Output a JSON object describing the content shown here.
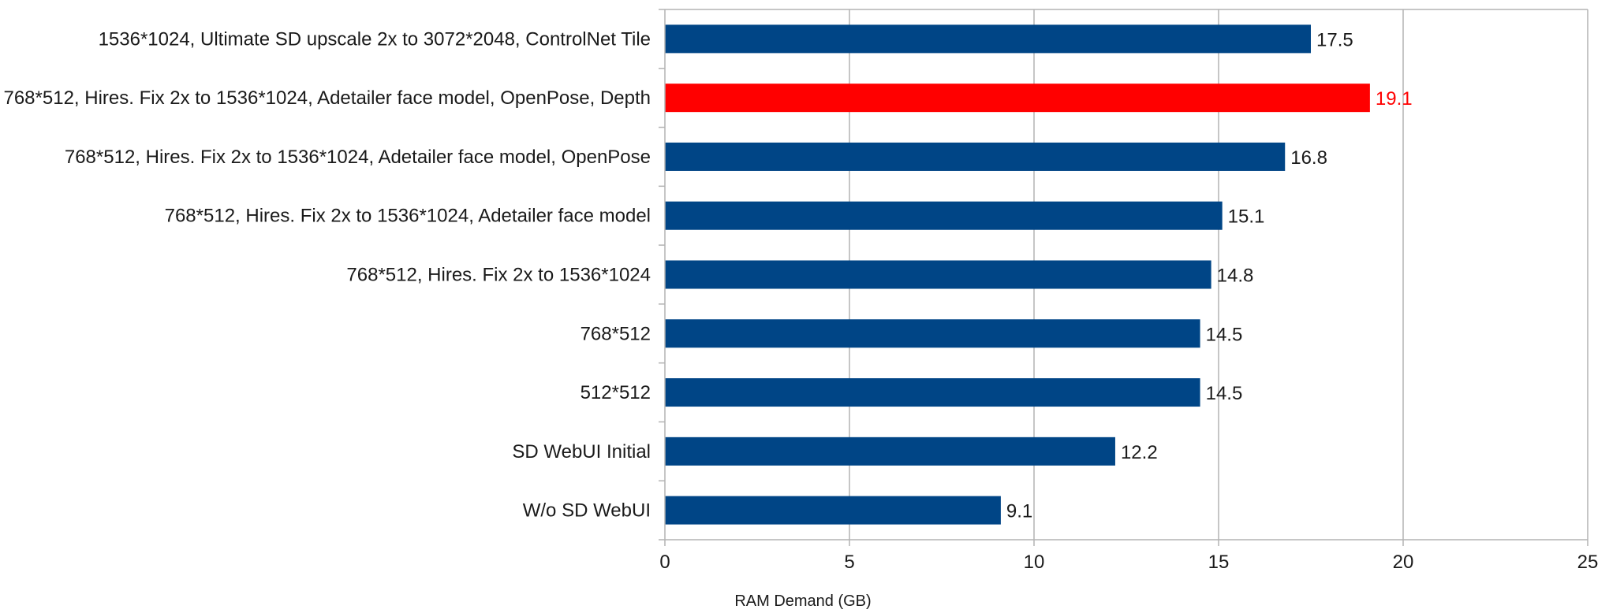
{
  "chart_data": {
    "type": "bar",
    "orientation": "horizontal",
    "title": "",
    "xlabel": "RAM Demand (GB)",
    "ylabel": "",
    "xlim": [
      0,
      25
    ],
    "xticks": [
      0,
      5,
      10,
      15,
      20,
      25
    ],
    "grid": "vertical",
    "legend": "none",
    "categories": [
      "1536*1024, Ultimate SD upscale 2x to 3072*2048, ControlNet Tile",
      "768*512, Hires. Fix 2x to 1536*1024, Adetailer face model, OpenPose, Depth",
      "768*512, Hires. Fix 2x to 1536*1024, Adetailer face model, OpenPose",
      "768*512, Hires. Fix 2x to 1536*1024, Adetailer face model",
      "768*512, Hires. Fix 2x to 1536*1024",
      "768*512",
      "512*512",
      "SD WebUI Initial",
      "W/o SD WebUI"
    ],
    "values": [
      17.5,
      19.1,
      16.8,
      15.1,
      14.8,
      14.5,
      14.5,
      12.2,
      9.1
    ],
    "value_labels": [
      "17.5",
      "19.1",
      "16.8",
      "15.1",
      "14.8",
      "14.5",
      "14.5",
      "12.2",
      "9.1"
    ],
    "highlight_index": 1,
    "colors": {
      "bar": "#004586",
      "highlight": "#ff0000",
      "label": "#1a1a1a",
      "highlight_label": "#ff0000",
      "grid": "#b3b3b3"
    }
  }
}
